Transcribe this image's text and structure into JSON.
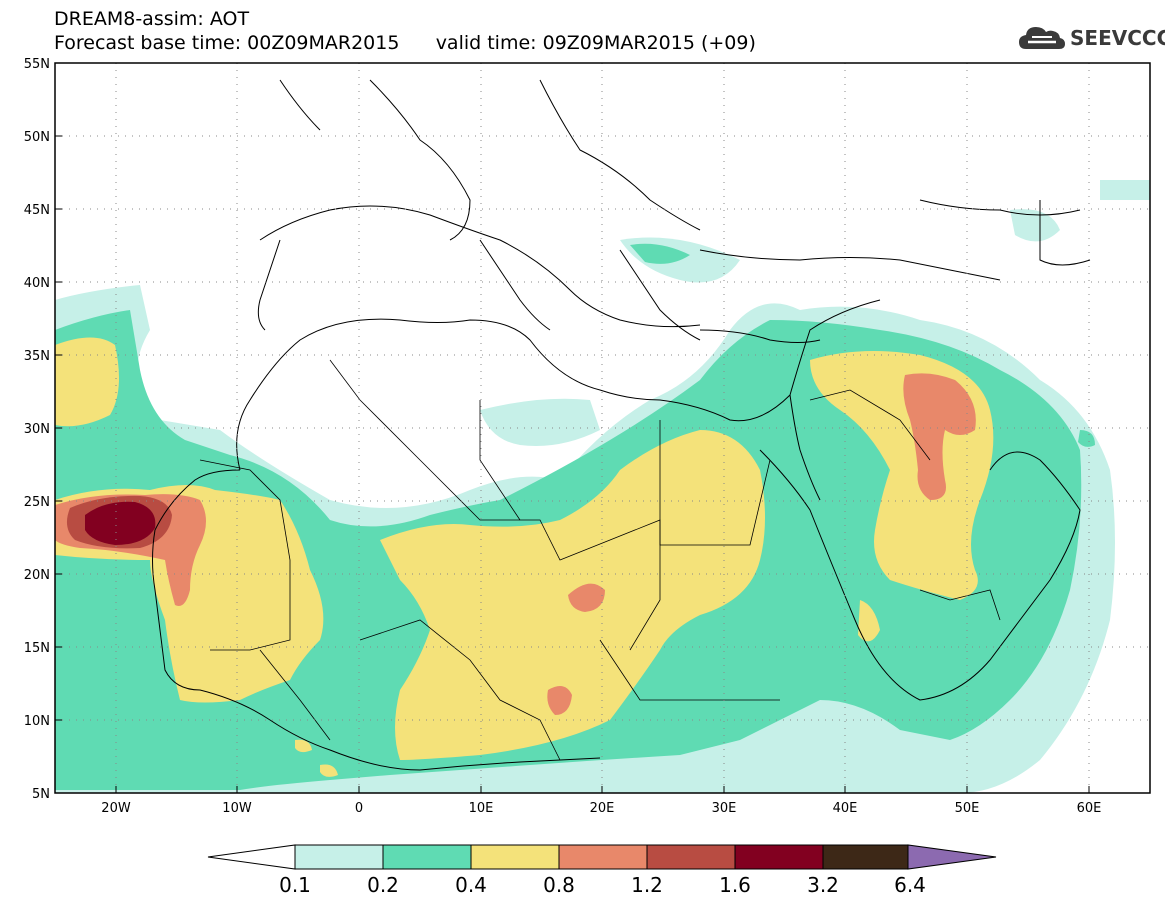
{
  "header": {
    "title_line1": "DREAM8-assim: AOT",
    "title_line2": "Forecast base time: 00Z09MAR2015      valid time: 09Z09MAR2015 (+09)"
  },
  "logo": {
    "text": "SEEVCCC",
    "icon": "cloud-logo-icon",
    "color": "#3a3a3a"
  },
  "map": {
    "lon_range": [
      -25,
      65
    ],
    "lat_range": [
      5,
      55
    ],
    "lat_ticks": [
      "55N",
      "50N",
      "45N",
      "40N",
      "35N",
      "30N",
      "25N",
      "20N",
      "15N",
      "10N",
      "5N"
    ],
    "lon_ticks": [
      "20W",
      "10W",
      "0",
      "10E",
      "20E",
      "30E",
      "40E",
      "50E",
      "60E"
    ],
    "grid": "dotted"
  },
  "colorbar": {
    "labels": [
      "0.1",
      "0.2",
      "0.4",
      "0.8",
      "1.2",
      "1.6",
      "3.2",
      "6.4"
    ],
    "under_color": "#ffffff",
    "over_color": "#8c6ab0",
    "colors": [
      "#c6f0e8",
      "#5fdbb3",
      "#f4e27a",
      "#e8886a",
      "#b84c42",
      "#820020",
      "#3d2817"
    ]
  }
}
